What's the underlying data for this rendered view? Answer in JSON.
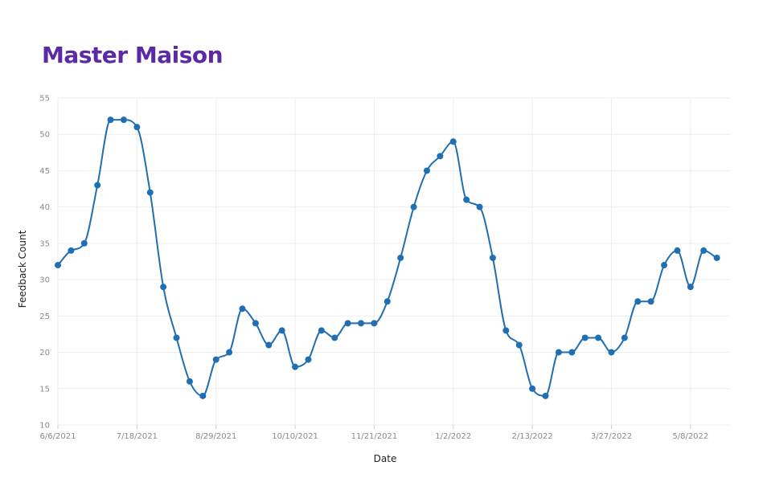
{
  "page": {
    "title": "Master Maison"
  },
  "colors": {
    "title": "#5b2aa4",
    "line": "#1f6fb2",
    "point": "#1f6fb2",
    "grid": "#eeeeee"
  },
  "chart_data": {
    "type": "line",
    "title": "Master Maison",
    "xlabel": "Date",
    "ylabel": "Feedback Count",
    "ylim": [
      10,
      55
    ],
    "yticks": [
      10,
      15,
      20,
      25,
      30,
      35,
      40,
      45,
      50,
      55
    ],
    "xlim": [
      "2021-06-06",
      "2022-05-29"
    ],
    "xticks": [
      "2021-06-06",
      "2021-07-18",
      "2021-08-29",
      "2021-10-10",
      "2021-11-21",
      "2022-01-02",
      "2022-02-13",
      "2022-03-27",
      "2022-05-08"
    ],
    "xtick_labels": [
      "6/6/2021",
      "7/18/2021",
      "8/29/2021",
      "10/10/2021",
      "11/21/2021",
      "1/2/2022",
      "2/13/2022",
      "3/27/2022",
      "5/8/2022"
    ],
    "grid": true,
    "series": [
      {
        "x": [
          "2021-06-06",
          "2021-06-13",
          "2021-06-20",
          "2021-06-27",
          "2021-07-04",
          "2021-07-11",
          "2021-07-18",
          "2021-07-25",
          "2021-08-01",
          "2021-08-08",
          "2021-08-15",
          "2021-08-22",
          "2021-08-29",
          "2021-09-05",
          "2021-09-12",
          "2021-09-19",
          "2021-09-26",
          "2021-10-03",
          "2021-10-10",
          "2021-10-17",
          "2021-10-24",
          "2021-10-31",
          "2021-11-07",
          "2021-11-14",
          "2021-11-21",
          "2021-11-28",
          "2021-12-05",
          "2021-12-12",
          "2021-12-19",
          "2021-12-26",
          "2022-01-02",
          "2022-01-09",
          "2022-01-16",
          "2022-01-23",
          "2022-01-30",
          "2022-02-06",
          "2022-02-13",
          "2022-02-20",
          "2022-02-27",
          "2022-03-06",
          "2022-03-13",
          "2022-03-20",
          "2022-03-27",
          "2022-04-03",
          "2022-04-10",
          "2022-04-17",
          "2022-04-24",
          "2022-05-01",
          "2022-05-08",
          "2022-05-15",
          "2022-05-22",
          "2022-05-29"
        ],
        "y": [
          32,
          34,
          35,
          43,
          52,
          52,
          51,
          42,
          29,
          22,
          16,
          14,
          19,
          20,
          26,
          24,
          21,
          23,
          18,
          19,
          23,
          22,
          24,
          24,
          24,
          27,
          33,
          40,
          45,
          47,
          49,
          41,
          40,
          33,
          23,
          21,
          15,
          14,
          20,
          20,
          22,
          22,
          20,
          22,
          27,
          27,
          32,
          34,
          29,
          34,
          33,
          null
        ]
      }
    ]
  }
}
